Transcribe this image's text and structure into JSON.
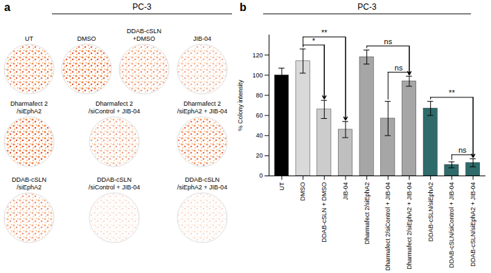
{
  "chart_data": {
    "type": "bar",
    "panel_label": "b",
    "title": "PC-3",
    "categories": [
      "UT",
      "DMSO",
      "DDAB-cSLN + DMSO",
      "JIB-04",
      "Dharmafect 2/siEphA2",
      "Dharmafect 2/siControl + JIB-04",
      "Dharmafect 2/siEphA2 + JIB-04",
      "DDAB-cSLN/siEphA2",
      "DDAB-cSLN/siControl + JIB-04",
      "DDAB-cSLN/siEphA2 + JIB-04"
    ],
    "values": [
      100,
      114,
      66,
      46,
      118,
      57,
      94,
      67,
      11,
      13
    ],
    "errors": [
      7,
      12,
      9,
      8,
      7,
      17,
      5,
      7,
      3,
      4
    ],
    "colors": [
      "#000000",
      "#d9d9d9",
      "#cccccc",
      "#bfbfbf",
      "#a6a6a6",
      "#a6a6a6",
      "#a6a6a6",
      "#2f6b6b",
      "#2f6b6b",
      "#2f6b6b"
    ],
    "ylabel": "% Colony intensity",
    "ylim": [
      0,
      140
    ],
    "yticks": [
      0,
      20,
      40,
      60,
      80,
      100,
      120
    ],
    "comparisons": [
      {
        "from": "DMSO",
        "to": "DDAB-cSLN + DMSO",
        "label": "*"
      },
      {
        "from": "DMSO",
        "to": "JIB-04",
        "label": "**"
      },
      {
        "from": "Dharmafect 2/siEphA2",
        "to": "Dharmafect 2/siEphA2 + JIB-04",
        "label": "ns"
      },
      {
        "from": "Dharmafect 2/siControl + JIB-04",
        "to": "Dharmafect 2/siEphA2 + JIB-04",
        "label": "ns"
      },
      {
        "from": "DDAB-cSLN/siEphA2",
        "to": "DDAB-cSLN/siEphA2 + JIB-04",
        "label": "**"
      },
      {
        "from": "DDAB-cSLN/siControl + JIB-04",
        "to": "DDAB-cSLN/siEphA2 + JIB-04",
        "label": "ns"
      }
    ]
  },
  "panel_a": {
    "panel_label": "a",
    "title": "PC-3",
    "plates": [
      {
        "label": [
          "UT"
        ]
      },
      {
        "label": [
          "DMSO"
        ]
      },
      {
        "label": [
          "DDAB-cSLN",
          "+DMSO"
        ]
      },
      {
        "label": [
          "JIB-04"
        ]
      },
      {
        "label": [
          "Dharmafect 2",
          "/siEphA2"
        ]
      },
      {
        "label": [
          "Dharmafect 2",
          "/siControl + JIB-04"
        ]
      },
      {
        "label": [
          "Dharmafect 2",
          "/siEphA2 + JIB-04"
        ]
      },
      {
        "label": [
          "DDAB-cSLN",
          "/siEphA2"
        ]
      },
      {
        "label": [
          "DDAB-cSLN",
          "/siControl + JIB-04"
        ]
      },
      {
        "label": [
          "DDAB-cSLN",
          "/siEphA2 + JIB-04"
        ]
      }
    ]
  }
}
